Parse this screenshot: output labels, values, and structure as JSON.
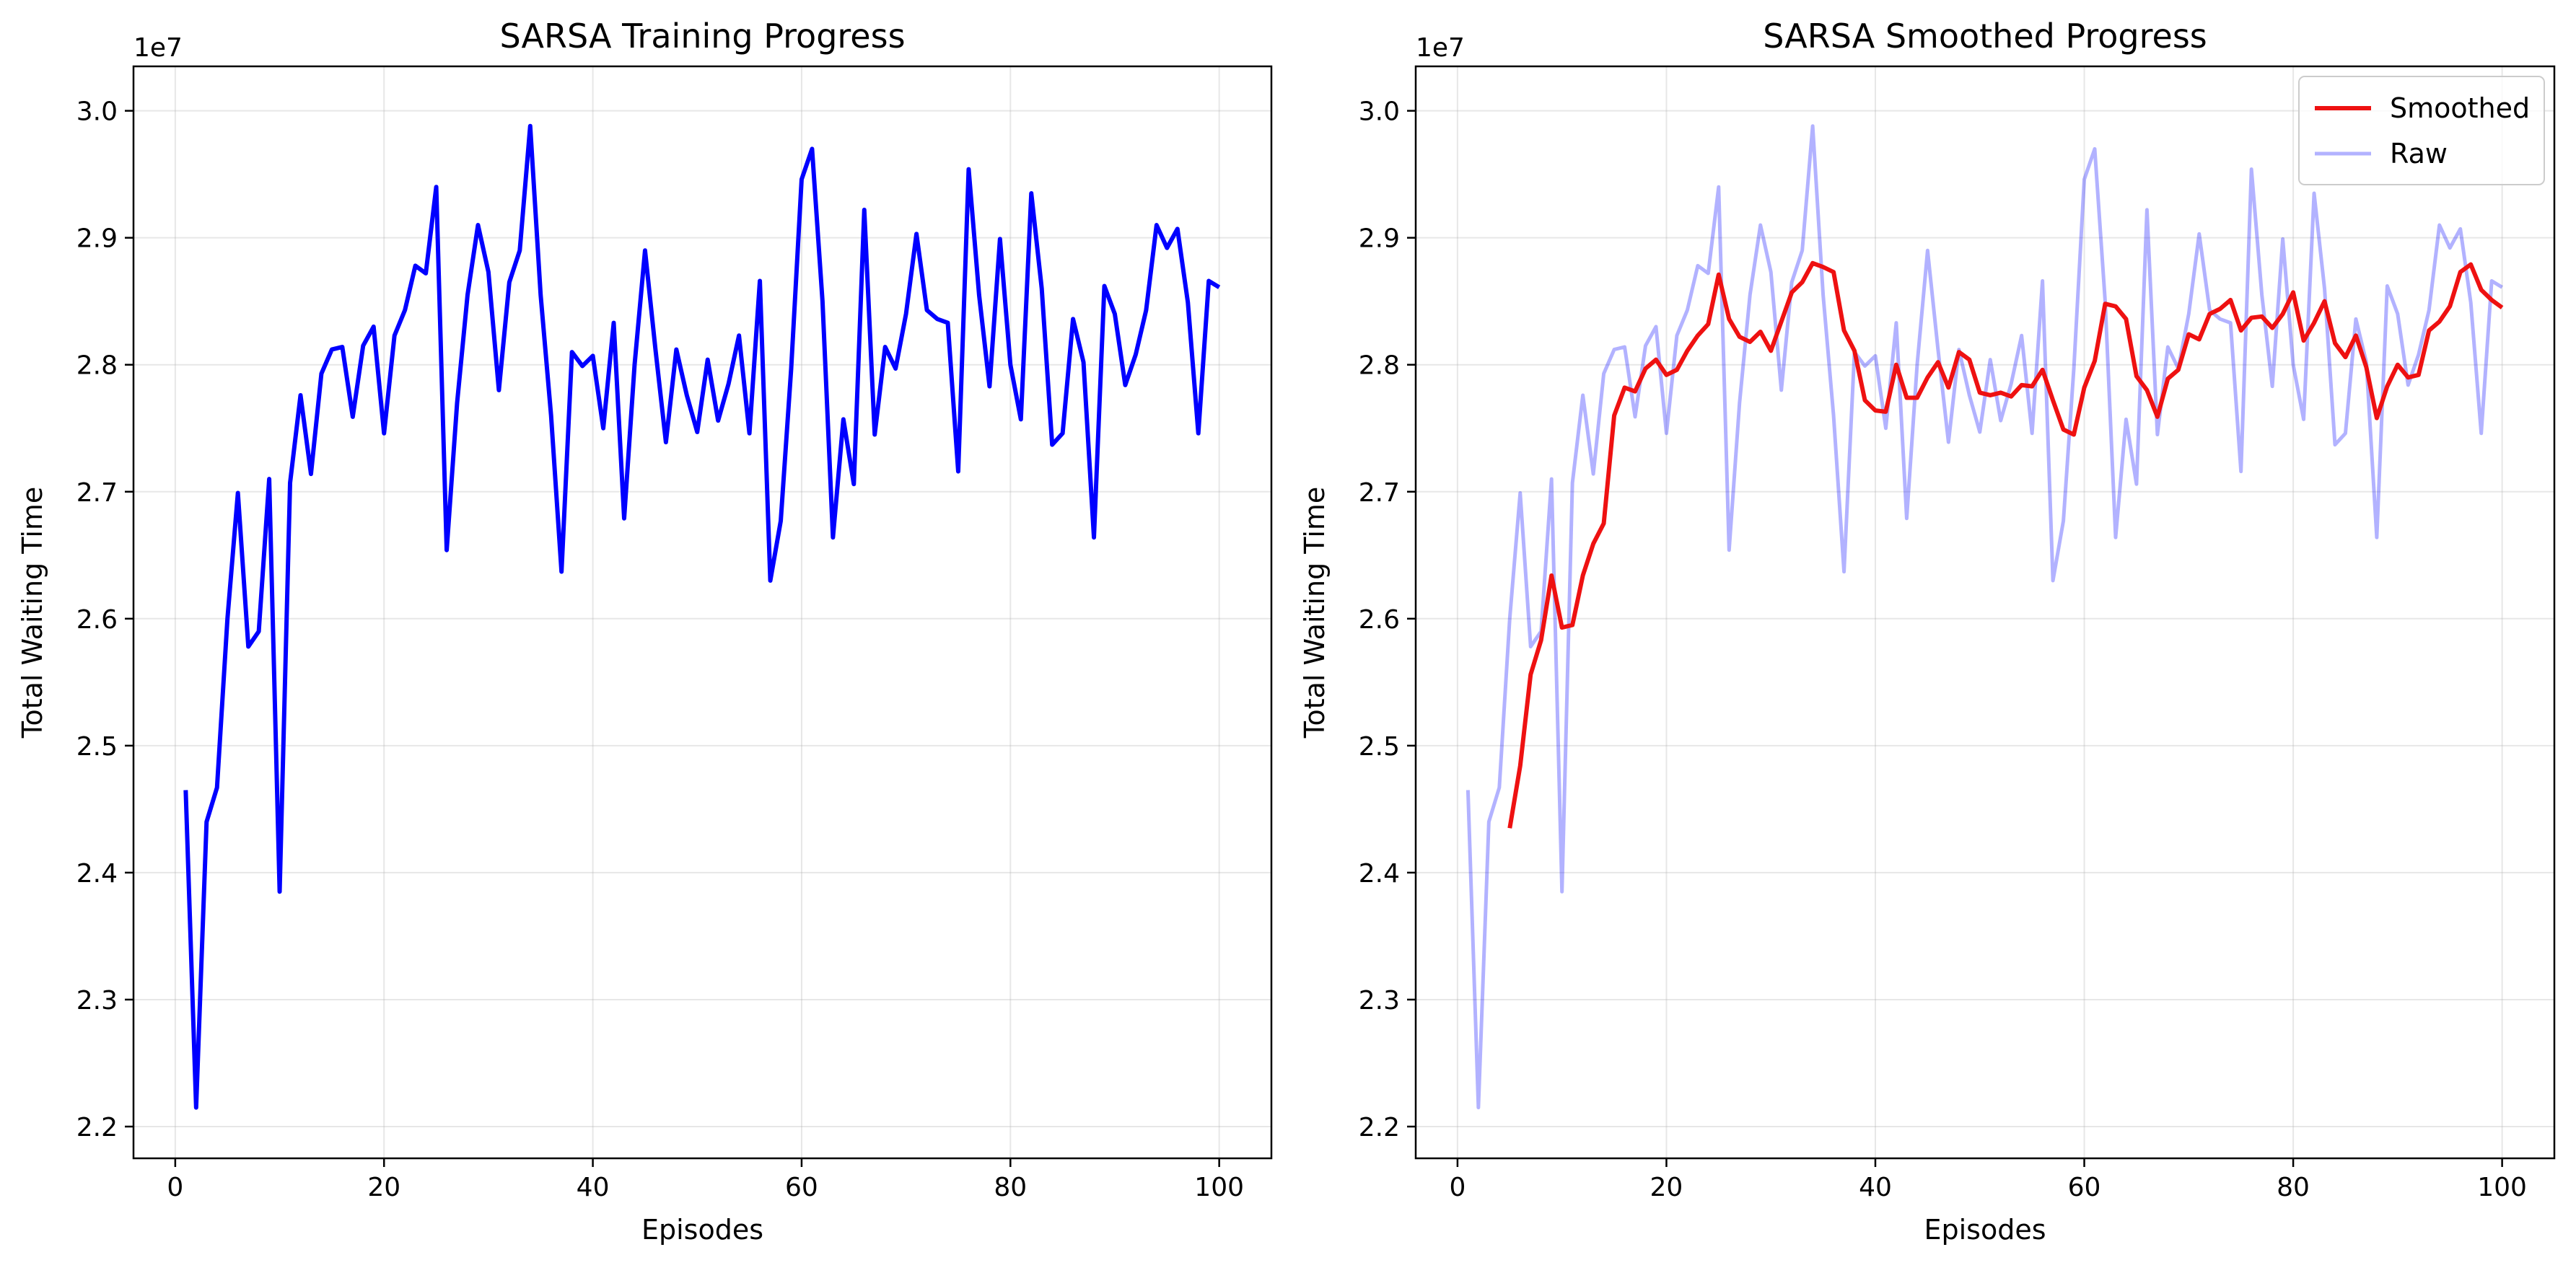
{
  "chart_data": [
    {
      "type": "line",
      "title": "SARSA Training Progress",
      "xlabel": "Episodes",
      "ylabel": "Total Waiting Time",
      "offset_text": "1e7",
      "xlim": [
        -4,
        105
      ],
      "ylim": [
        2.175,
        3.035
      ],
      "xticks": [
        0,
        20,
        40,
        60,
        80,
        100
      ],
      "xtick_labels": [
        "0",
        "20",
        "40",
        "60",
        "80",
        "100"
      ],
      "yticks": [
        2.2,
        2.3,
        2.4,
        2.5,
        2.6,
        2.7,
        2.8,
        2.9,
        3.0
      ],
      "ytick_labels": [
        "2.2",
        "2.3",
        "2.4",
        "2.5",
        "2.6",
        "2.7",
        "2.8",
        "2.9",
        "3.0"
      ],
      "grid": true,
      "legend": null,
      "series": [
        {
          "color": "#0000ff",
          "opacity": 1,
          "width": 6,
          "x_start": 1,
          "values": [
            2.465,
            2.215,
            2.44,
            2.467,
            2.6,
            2.699,
            2.578,
            2.59,
            2.71,
            2.385,
            2.707,
            2.776,
            2.714,
            2.793,
            2.812,
            2.814,
            2.759,
            2.815,
            2.83,
            2.746,
            2.823,
            2.843,
            2.878,
            2.872,
            2.94,
            2.654,
            2.77,
            2.855,
            2.91,
            2.873,
            2.78,
            2.865,
            2.89,
            2.988,
            2.855,
            2.76,
            2.637,
            2.81,
            2.799,
            2.807,
            2.75,
            2.833,
            2.679,
            2.8,
            2.89,
            2.812,
            2.739,
            2.812,
            2.776,
            2.747,
            2.804,
            2.756,
            2.785,
            2.823,
            2.746,
            2.866,
            2.63,
            2.677,
            2.797,
            2.946,
            2.97,
            2.85,
            2.664,
            2.757,
            2.706,
            2.922,
            2.745,
            2.814,
            2.797,
            2.84,
            2.903,
            2.843,
            2.836,
            2.833,
            2.716,
            2.954,
            2.855,
            2.783,
            2.899,
            2.8,
            2.757,
            2.935,
            2.86,
            2.737,
            2.746,
            2.836,
            2.802,
            2.664,
            2.862,
            2.84,
            2.784,
            2.808,
            2.843,
            2.91,
            2.892,
            2.907,
            2.849,
            2.746,
            2.866,
            2.861
          ]
        }
      ]
    },
    {
      "type": "line",
      "title": "SARSA Smoothed Progress",
      "xlabel": "Episodes",
      "ylabel": "Total Waiting Time",
      "offset_text": "1e7",
      "xlim": [
        -4,
        105
      ],
      "ylim": [
        2.175,
        3.035
      ],
      "xticks": [
        0,
        20,
        40,
        60,
        80,
        100
      ],
      "xtick_labels": [
        "0",
        "20",
        "40",
        "60",
        "80",
        "100"
      ],
      "yticks": [
        2.2,
        2.3,
        2.4,
        2.5,
        2.6,
        2.7,
        2.8,
        2.9,
        3.0
      ],
      "ytick_labels": [
        "2.2",
        "2.3",
        "2.4",
        "2.5",
        "2.6",
        "2.7",
        "2.8",
        "2.9",
        "3.0"
      ],
      "grid": true,
      "legend": "top-right",
      "series": [
        {
          "name": "Smoothed",
          "color": "#ee1111",
          "opacity": 1,
          "width": 6,
          "x_start": 5,
          "values": [
            2.435,
            2.484,
            2.556,
            2.583,
            2.634,
            2.593,
            2.595,
            2.634,
            2.659,
            2.675,
            2.76,
            2.782,
            2.779,
            2.797,
            2.804,
            2.792,
            2.796,
            2.811,
            2.823,
            2.832,
            2.871,
            2.836,
            2.822,
            2.818,
            2.826,
            2.811,
            2.834,
            2.857,
            2.865,
            2.88,
            2.877,
            2.873,
            2.827,
            2.811,
            2.772,
            2.764,
            2.763,
            2.8,
            2.774,
            2.774,
            2.79,
            2.802,
            2.782,
            2.81,
            2.804,
            2.778,
            2.776,
            2.778,
            2.775,
            2.784,
            2.783,
            2.796,
            2.772,
            2.749,
            2.745,
            2.782,
            2.803,
            2.848,
            2.846,
            2.836,
            2.791,
            2.78,
            2.759,
            2.789,
            2.796,
            2.824,
            2.82,
            2.84,
            2.844,
            2.851,
            2.827,
            2.837,
            2.838,
            2.829,
            2.84,
            2.857,
            2.819,
            2.833,
            2.85,
            2.817,
            2.806,
            2.823,
            2.798,
            2.758,
            2.783,
            2.8,
            2.79,
            2.792,
            2.827,
            2.834,
            2.846,
            2.873,
            2.879,
            2.859,
            2.851,
            2.845
          ]
        },
        {
          "name": "Raw",
          "color": "#0000ff",
          "opacity": 0.3,
          "width": 5,
          "x_start": 1,
          "values": [
            2.465,
            2.215,
            2.44,
            2.467,
            2.6,
            2.699,
            2.578,
            2.59,
            2.71,
            2.385,
            2.707,
            2.776,
            2.714,
            2.793,
            2.812,
            2.814,
            2.759,
            2.815,
            2.83,
            2.746,
            2.823,
            2.843,
            2.878,
            2.872,
            2.94,
            2.654,
            2.77,
            2.855,
            2.91,
            2.873,
            2.78,
            2.865,
            2.89,
            2.988,
            2.855,
            2.76,
            2.637,
            2.81,
            2.799,
            2.807,
            2.75,
            2.833,
            2.679,
            2.8,
            2.89,
            2.812,
            2.739,
            2.812,
            2.776,
            2.747,
            2.804,
            2.756,
            2.785,
            2.823,
            2.746,
            2.866,
            2.63,
            2.677,
            2.797,
            2.946,
            2.97,
            2.85,
            2.664,
            2.757,
            2.706,
            2.922,
            2.745,
            2.814,
            2.797,
            2.84,
            2.903,
            2.843,
            2.836,
            2.833,
            2.716,
            2.954,
            2.855,
            2.783,
            2.899,
            2.8,
            2.757,
            2.935,
            2.86,
            2.737,
            2.746,
            2.836,
            2.802,
            2.664,
            2.862,
            2.84,
            2.784,
            2.808,
            2.843,
            2.91,
            2.892,
            2.907,
            2.849,
            2.746,
            2.866,
            2.861
          ]
        }
      ]
    }
  ]
}
